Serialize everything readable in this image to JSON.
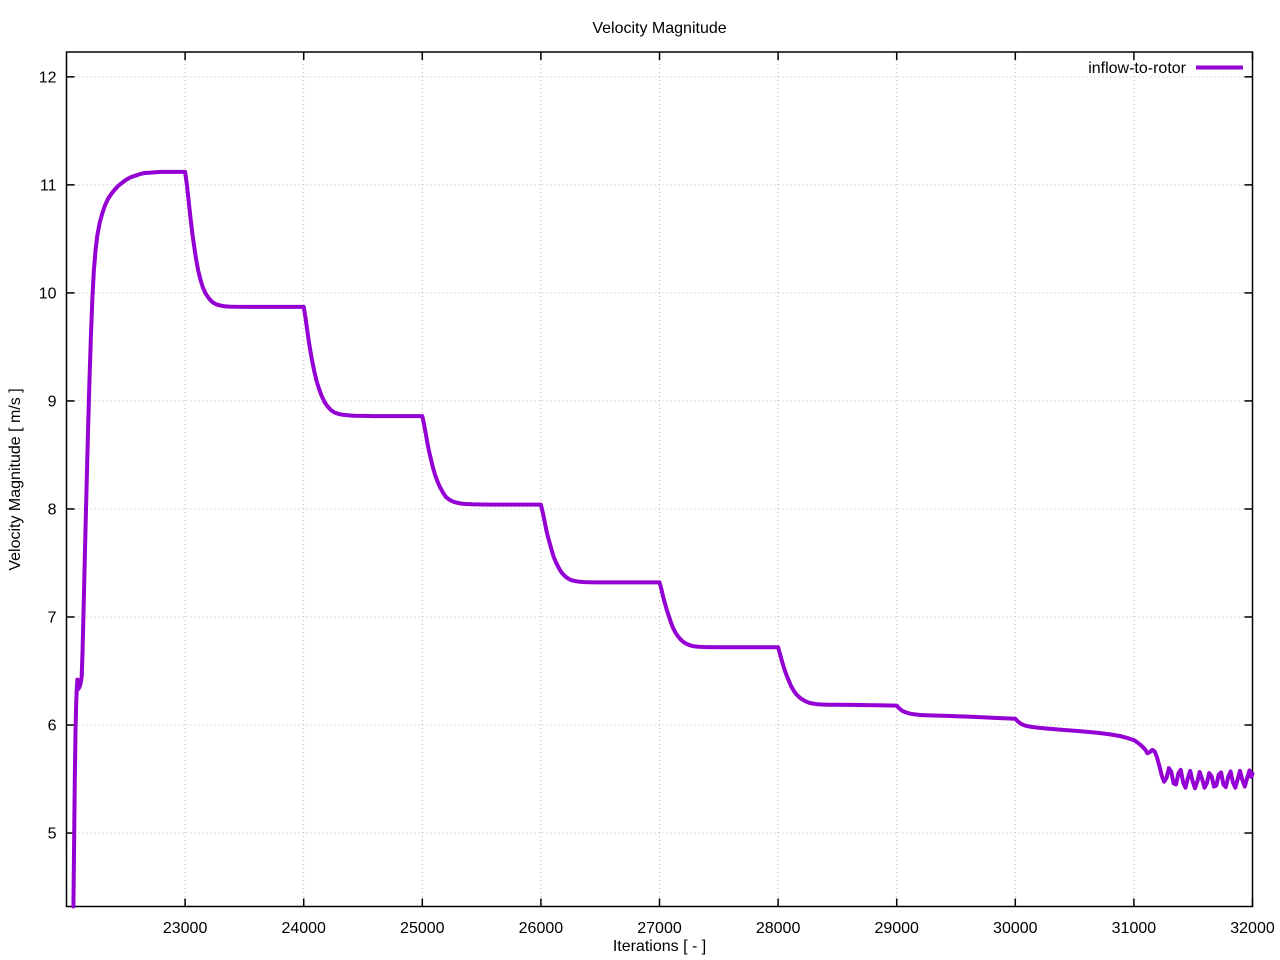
{
  "chart_data": {
    "type": "line",
    "title": "Velocity Magnitude",
    "xlabel": "Iterations [ - ]",
    "ylabel": "Velocity Magnitude [ m/s ]",
    "xlim": [
      22000,
      32000
    ],
    "ylim": [
      4.32,
      12.23
    ],
    "x_ticks": [
      23000,
      24000,
      25000,
      26000,
      27000,
      28000,
      29000,
      30000,
      31000,
      32000
    ],
    "y_ticks": [
      5,
      6,
      7,
      8,
      9,
      10,
      11,
      12
    ],
    "grid": true,
    "grid_style": "dotted",
    "grid_color": "#b8b8b8",
    "axis_color": "#000000",
    "background": "#ffffff",
    "legend_position": "top-right-inside",
    "series": [
      {
        "name": "inflow-to-rotor",
        "color": "#9400d3",
        "line_width": 4,
        "points": [
          [
            22058,
            4.32
          ],
          [
            22064,
            4.9
          ],
          [
            22070,
            5.5
          ],
          [
            22076,
            5.95
          ],
          [
            22082,
            6.2
          ],
          [
            22088,
            6.36
          ],
          [
            22092,
            6.42
          ],
          [
            22096,
            6.33
          ],
          [
            22104,
            6.34
          ],
          [
            22112,
            6.36
          ],
          [
            22120,
            6.39
          ],
          [
            22128,
            6.45
          ],
          [
            22136,
            6.7
          ],
          [
            22146,
            7.15
          ],
          [
            22158,
            7.7
          ],
          [
            22170,
            8.25
          ],
          [
            22182,
            8.75
          ],
          [
            22194,
            9.2
          ],
          [
            22206,
            9.6
          ],
          [
            22218,
            9.95
          ],
          [
            22230,
            10.2
          ],
          [
            22245,
            10.4
          ],
          [
            22260,
            10.53
          ],
          [
            22280,
            10.65
          ],
          [
            22300,
            10.73
          ],
          [
            22325,
            10.81
          ],
          [
            22350,
            10.87
          ],
          [
            22380,
            10.92
          ],
          [
            22410,
            10.96
          ],
          [
            22440,
            10.995
          ],
          [
            22470,
            11.02
          ],
          [
            22500,
            11.045
          ],
          [
            22540,
            11.07
          ],
          [
            22580,
            11.085
          ],
          [
            22620,
            11.1
          ],
          [
            22660,
            11.11
          ],
          [
            22700,
            11.113
          ],
          [
            22750,
            11.117
          ],
          [
            22800,
            11.12
          ],
          [
            22900,
            11.12
          ],
          [
            23000,
            11.12
          ],
          [
            23015,
            11.0
          ],
          [
            23030,
            10.85
          ],
          [
            23045,
            10.7
          ],
          [
            23060,
            10.56
          ],
          [
            23075,
            10.44
          ],
          [
            23090,
            10.33
          ],
          [
            23110,
            10.21
          ],
          [
            23130,
            10.12
          ],
          [
            23150,
            10.05
          ],
          [
            23175,
            9.99
          ],
          [
            23200,
            9.95
          ],
          [
            23230,
            9.915
          ],
          [
            23260,
            9.895
          ],
          [
            23290,
            9.885
          ],
          [
            23330,
            9.877
          ],
          [
            23370,
            9.873
          ],
          [
            23420,
            9.871
          ],
          [
            23500,
            9.87
          ],
          [
            23600,
            9.87
          ],
          [
            23750,
            9.87
          ],
          [
            23900,
            9.87
          ],
          [
            24000,
            9.87
          ],
          [
            24015,
            9.77
          ],
          [
            24030,
            9.65
          ],
          [
            24045,
            9.54
          ],
          [
            24060,
            9.44
          ],
          [
            24075,
            9.35
          ],
          [
            24090,
            9.27
          ],
          [
            24110,
            9.18
          ],
          [
            24130,
            9.11
          ],
          [
            24150,
            9.05
          ],
          [
            24175,
            8.99
          ],
          [
            24200,
            8.95
          ],
          [
            24230,
            8.915
          ],
          [
            24260,
            8.893
          ],
          [
            24290,
            8.881
          ],
          [
            24330,
            8.872
          ],
          [
            24370,
            8.867
          ],
          [
            24420,
            8.863
          ],
          [
            24500,
            8.861
          ],
          [
            24600,
            8.86
          ],
          [
            24750,
            8.86
          ],
          [
            24900,
            8.86
          ],
          [
            25000,
            8.86
          ],
          [
            25015,
            8.78
          ],
          [
            25030,
            8.69
          ],
          [
            25045,
            8.6
          ],
          [
            25060,
            8.52
          ],
          [
            25075,
            8.45
          ],
          [
            25090,
            8.38
          ],
          [
            25110,
            8.31
          ],
          [
            25130,
            8.25
          ],
          [
            25150,
            8.2
          ],
          [
            25175,
            8.15
          ],
          [
            25200,
            8.11
          ],
          [
            25230,
            8.085
          ],
          [
            25260,
            8.068
          ],
          [
            25290,
            8.058
          ],
          [
            25330,
            8.05
          ],
          [
            25370,
            8.046
          ],
          [
            25420,
            8.043
          ],
          [
            25500,
            8.041
          ],
          [
            25600,
            8.04
          ],
          [
            25750,
            8.04
          ],
          [
            25900,
            8.04
          ],
          [
            26000,
            8.04
          ],
          [
            26015,
            7.97
          ],
          [
            26030,
            7.89
          ],
          [
            26045,
            7.81
          ],
          [
            26060,
            7.74
          ],
          [
            26075,
            7.68
          ],
          [
            26090,
            7.62
          ],
          [
            26110,
            7.55
          ],
          [
            26130,
            7.5
          ],
          [
            26150,
            7.455
          ],
          [
            26175,
            7.41
          ],
          [
            26200,
            7.38
          ],
          [
            26230,
            7.355
          ],
          [
            26260,
            7.34
          ],
          [
            26290,
            7.332
          ],
          [
            26330,
            7.326
          ],
          [
            26370,
            7.323
          ],
          [
            26420,
            7.321
          ],
          [
            26500,
            7.32
          ],
          [
            26600,
            7.32
          ],
          [
            26750,
            7.32
          ],
          [
            26900,
            7.32
          ],
          [
            27000,
            7.32
          ],
          [
            27015,
            7.26
          ],
          [
            27030,
            7.19
          ],
          [
            27045,
            7.13
          ],
          [
            27060,
            7.07
          ],
          [
            27075,
            7.02
          ],
          [
            27090,
            6.97
          ],
          [
            27110,
            6.91
          ],
          [
            27130,
            6.865
          ],
          [
            27150,
            6.83
          ],
          [
            27175,
            6.795
          ],
          [
            27200,
            6.77
          ],
          [
            27230,
            6.75
          ],
          [
            27260,
            6.737
          ],
          [
            27290,
            6.729
          ],
          [
            27330,
            6.724
          ],
          [
            27370,
            6.722
          ],
          [
            27420,
            6.721
          ],
          [
            27500,
            6.72
          ],
          [
            27600,
            6.72
          ],
          [
            27750,
            6.72
          ],
          [
            27900,
            6.72
          ],
          [
            28000,
            6.72
          ],
          [
            28015,
            6.66
          ],
          [
            28030,
            6.6
          ],
          [
            28045,
            6.545
          ],
          [
            28060,
            6.495
          ],
          [
            28075,
            6.45
          ],
          [
            28090,
            6.41
          ],
          [
            28110,
            6.36
          ],
          [
            28130,
            6.32
          ],
          [
            28150,
            6.29
          ],
          [
            28175,
            6.26
          ],
          [
            28200,
            6.24
          ],
          [
            28230,
            6.22
          ],
          [
            28260,
            6.207
          ],
          [
            28290,
            6.199
          ],
          [
            28330,
            6.193
          ],
          [
            28370,
            6.19
          ],
          [
            28420,
            6.188
          ],
          [
            28500,
            6.187
          ],
          [
            28600,
            6.186
          ],
          [
            28750,
            6.184
          ],
          [
            28900,
            6.182
          ],
          [
            29000,
            6.18
          ],
          [
            29015,
            6.16
          ],
          [
            29030,
            6.145
          ],
          [
            29050,
            6.13
          ],
          [
            29070,
            6.12
          ],
          [
            29090,
            6.112
          ],
          [
            29120,
            6.104
          ],
          [
            29150,
            6.099
          ],
          [
            29200,
            6.093
          ],
          [
            29250,
            6.09
          ],
          [
            29300,
            6.088
          ],
          [
            29400,
            6.085
          ],
          [
            29500,
            6.082
          ],
          [
            29600,
            6.078
          ],
          [
            29700,
            6.073
          ],
          [
            29800,
            6.068
          ],
          [
            29900,
            6.063
          ],
          [
            30000,
            6.058
          ],
          [
            30015,
            6.04
          ],
          [
            30030,
            6.025
          ],
          [
            30050,
            6.01
          ],
          [
            30070,
            6.0
          ],
          [
            30090,
            5.993
          ],
          [
            30120,
            5.986
          ],
          [
            30150,
            5.981
          ],
          [
            30200,
            5.974
          ],
          [
            30250,
            5.969
          ],
          [
            30300,
            5.964
          ],
          [
            30400,
            5.955
          ],
          [
            30500,
            5.946
          ],
          [
            30600,
            5.937
          ],
          [
            30700,
            5.927
          ],
          [
            30800,
            5.913
          ],
          [
            30880,
            5.898
          ],
          [
            30940,
            5.882
          ],
          [
            31000,
            5.86
          ],
          [
            31030,
            5.838
          ],
          [
            31060,
            5.812
          ],
          [
            31090,
            5.78
          ],
          [
            31115,
            5.738
          ],
          [
            31135,
            5.75
          ],
          [
            31155,
            5.77
          ],
          [
            31175,
            5.755
          ],
          [
            31195,
            5.7
          ],
          [
            31215,
            5.62
          ],
          [
            31235,
            5.53
          ],
          [
            31255,
            5.475
          ],
          [
            31275,
            5.51
          ],
          [
            31295,
            5.6
          ],
          [
            31315,
            5.565
          ],
          [
            31335,
            5.46
          ],
          [
            31355,
            5.45
          ],
          [
            31375,
            5.55
          ],
          [
            31395,
            5.585
          ],
          [
            31415,
            5.47
          ],
          [
            31435,
            5.42
          ],
          [
            31455,
            5.51
          ],
          [
            31475,
            5.575
          ],
          [
            31495,
            5.48
          ],
          [
            31515,
            5.415
          ],
          [
            31535,
            5.48
          ],
          [
            31555,
            5.565
          ],
          [
            31575,
            5.5
          ],
          [
            31595,
            5.42
          ],
          [
            31615,
            5.46
          ],
          [
            31635,
            5.555
          ],
          [
            31655,
            5.525
          ],
          [
            31675,
            5.43
          ],
          [
            31695,
            5.44
          ],
          [
            31715,
            5.54
          ],
          [
            31735,
            5.56
          ],
          [
            31755,
            5.45
          ],
          [
            31775,
            5.425
          ],
          [
            31795,
            5.52
          ],
          [
            31815,
            5.57
          ],
          [
            31835,
            5.47
          ],
          [
            31855,
            5.42
          ],
          [
            31875,
            5.5
          ],
          [
            31895,
            5.575
          ],
          [
            31915,
            5.49
          ],
          [
            31935,
            5.43
          ],
          [
            31955,
            5.51
          ],
          [
            31975,
            5.58
          ],
          [
            31990,
            5.52
          ],
          [
            32000,
            5.55
          ]
        ]
      }
    ]
  }
}
